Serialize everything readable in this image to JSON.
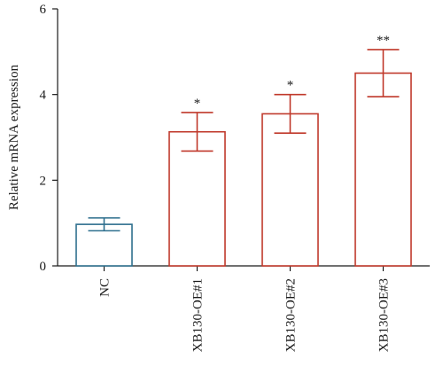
{
  "chart_data": {
    "type": "bar",
    "title": "",
    "xlabel": "",
    "ylabel": "Relative mRNA expression",
    "ylim": [
      0,
      6
    ],
    "yticks": [
      0,
      2,
      4,
      6
    ],
    "categories": [
      "NC",
      "XB130-OE#1",
      "XB130-OE#2",
      "XB130-OE#3"
    ],
    "values": [
      0.97,
      3.13,
      3.55,
      4.5
    ],
    "errors": [
      0.15,
      0.45,
      0.45,
      0.55
    ],
    "significance": [
      "",
      "*",
      "*",
      "**"
    ],
    "bar_colors": [
      "#2e6f8e",
      "#c0392b",
      "#c0392b",
      "#c0392b"
    ],
    "grid": false,
    "legend": "none"
  }
}
